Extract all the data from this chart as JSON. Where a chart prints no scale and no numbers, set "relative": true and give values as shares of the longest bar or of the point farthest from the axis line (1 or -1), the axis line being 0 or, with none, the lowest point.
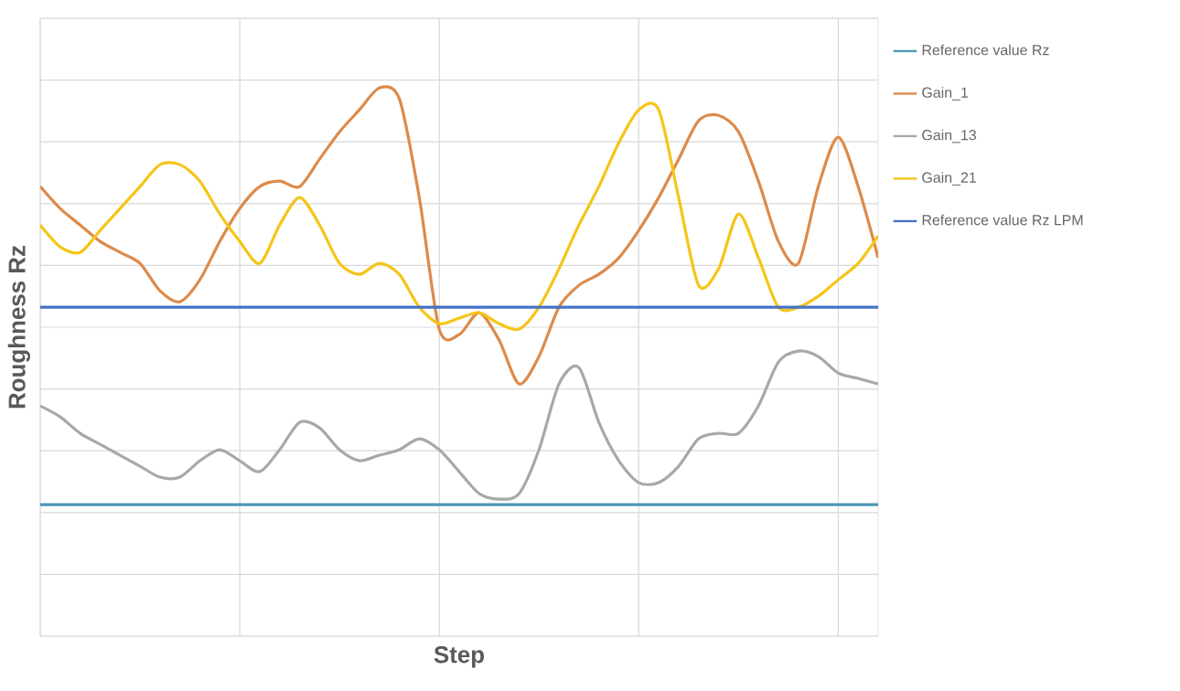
{
  "chart_data": {
    "type": "line",
    "xlabel": "Step",
    "ylabel": "Roughness Rz",
    "relative": true,
    "grid": true,
    "legend": "right",
    "marker": "none",
    "line_style": "solid",
    "categories": [
      null,
      null,
      null,
      null,
      null,
      null,
      null,
      null,
      null,
      null,
      null,
      null,
      null,
      null,
      null,
      null,
      null,
      null,
      null,
      null,
      null,
      null,
      null,
      null,
      null,
      null,
      null,
      null,
      null,
      null,
      null,
      null,
      null,
      null,
      null,
      null,
      null,
      null,
      null,
      null,
      null,
      null,
      null
    ],
    "series": [
      {
        "name": "Reference value Rz",
        "color": "#4e97b8",
        "values": [
          0.24,
          0.24,
          0.24,
          0.24,
          0.24,
          0.24,
          0.24,
          0.24,
          0.24,
          0.24,
          0.24,
          0.24,
          0.24,
          0.24,
          0.24,
          0.24,
          0.24,
          0.24,
          0.24,
          0.24,
          0.24,
          0.24,
          0.24,
          0.24,
          0.24,
          0.24,
          0.24,
          0.24,
          0.24,
          0.24,
          0.24,
          0.24,
          0.24,
          0.24,
          0.24,
          0.24,
          0.24,
          0.24,
          0.24,
          0.24,
          0.24,
          0.24,
          0.24
        ]
      },
      {
        "name": "Gain_1",
        "color": "#dd8a4a",
        "values": [
          0.82,
          0.78,
          0.75,
          0.72,
          0.7,
          0.68,
          0.63,
          0.61,
          0.65,
          0.72,
          0.78,
          0.82,
          0.83,
          0.82,
          0.87,
          0.92,
          0.96,
          1.0,
          0.98,
          0.8,
          0.56,
          0.55,
          0.59,
          0.54,
          0.46,
          0.51,
          0.6,
          0.64,
          0.66,
          0.69,
          0.74,
          0.8,
          0.87,
          0.94,
          0.95,
          0.92,
          0.83,
          0.72,
          0.68,
          0.82,
          0.91,
          0.82,
          0.69
        ]
      },
      {
        "name": "Gain_13",
        "color": "#a8a8a8",
        "values": [
          0.42,
          0.4,
          0.37,
          0.35,
          0.33,
          0.31,
          0.29,
          0.29,
          0.32,
          0.34,
          0.32,
          0.3,
          0.34,
          0.39,
          0.38,
          0.34,
          0.32,
          0.33,
          0.34,
          0.36,
          0.34,
          0.3,
          0.26,
          0.25,
          0.26,
          0.34,
          0.46,
          0.49,
          0.39,
          0.32,
          0.28,
          0.28,
          0.31,
          0.36,
          0.37,
          0.37,
          0.42,
          0.5,
          0.52,
          0.51,
          0.48,
          0.47,
          0.46
        ]
      },
      {
        "name": "Gain_21",
        "color": "#f5c518",
        "values": [
          0.75,
          0.71,
          0.7,
          0.74,
          0.78,
          0.82,
          0.86,
          0.86,
          0.83,
          0.77,
          0.72,
          0.68,
          0.75,
          0.8,
          0.75,
          0.68,
          0.66,
          0.68,
          0.66,
          0.6,
          0.57,
          0.58,
          0.59,
          0.57,
          0.56,
          0.6,
          0.67,
          0.75,
          0.82,
          0.9,
          0.96,
          0.96,
          0.8,
          0.64,
          0.67,
          0.77,
          0.69,
          0.6,
          0.6,
          0.62,
          0.65,
          0.68,
          0.73
        ]
      },
      {
        "name": "Reference value Rz LPM",
        "color": "#4472c4",
        "values": [
          0.6,
          0.6,
          0.6,
          0.6,
          0.6,
          0.6,
          0.6,
          0.6,
          0.6,
          0.6,
          0.6,
          0.6,
          0.6,
          0.6,
          0.6,
          0.6,
          0.6,
          0.6,
          0.6,
          0.6,
          0.6,
          0.6,
          0.6,
          0.6,
          0.6,
          0.6,
          0.6,
          0.6,
          0.6,
          0.6,
          0.6,
          0.6,
          0.6,
          0.6,
          0.6,
          0.6,
          0.6,
          0.6,
          0.6,
          0.6,
          0.6,
          0.6,
          0.6
        ]
      }
    ]
  }
}
